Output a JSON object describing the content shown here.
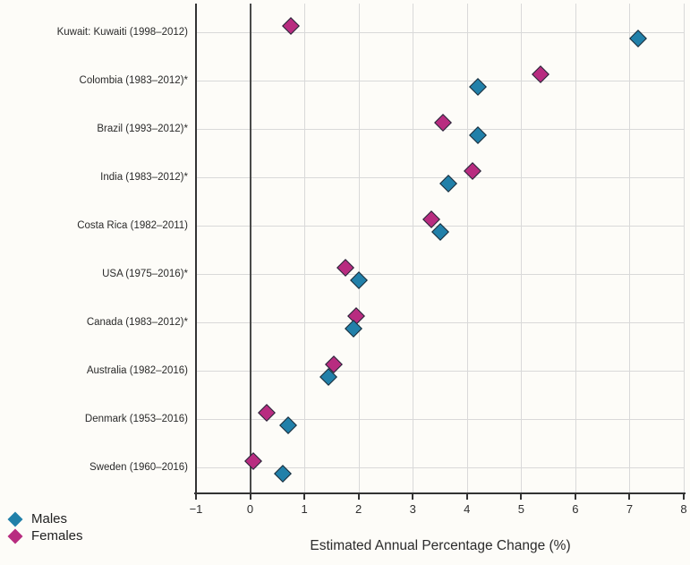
{
  "chart_data": {
    "type": "scatter",
    "subtype": "horizontal-dot-plot",
    "title": "",
    "xlabel": "Estimated Annual Percentage Change (%)",
    "ylabel": "",
    "xlim": [
      -1,
      8
    ],
    "xticks": [
      -1,
      0,
      1,
      2,
      3,
      4,
      5,
      6,
      7,
      8
    ],
    "grid": true,
    "zero_line": true,
    "legend_position": "bottom-left",
    "marker": "diamond",
    "categories": [
      "Kuwait: Kuwaiti (1998–2012)",
      "Colombia (1983–2012)*",
      "Brazil (1993–2012)*",
      "India (1983–2012)*",
      "Costa Rica (1982–2011)",
      "USA (1975–2016)*",
      "Canada (1983–2012)*",
      "Australia (1982–2016)",
      "Denmark (1953–2016)",
      "Sweden (1960–2016)"
    ],
    "series": [
      {
        "name": "Males",
        "color": "#2180a9",
        "values": [
          7.15,
          4.2,
          4.2,
          3.65,
          3.5,
          2.0,
          1.9,
          1.45,
          0.7,
          0.6
        ]
      },
      {
        "name": "Females",
        "color": "#b82c80",
        "values": [
          0.75,
          5.35,
          3.55,
          4.1,
          3.35,
          1.75,
          1.95,
          1.55,
          0.3,
          0.05
        ]
      }
    ],
    "colors": {
      "marker_outline": "#1c2733",
      "grid": "#d9d9d9",
      "axis": "#333333",
      "zero_line": "#4a4a4a",
      "text": "#2e2e2e",
      "background": "#fdfcf8"
    }
  }
}
